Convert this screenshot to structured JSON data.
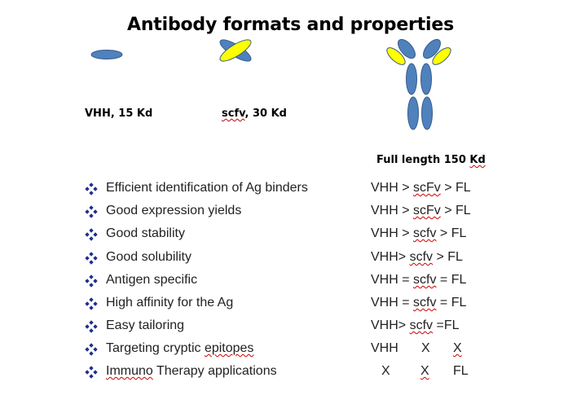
{
  "title": "Antibody formats and properties",
  "formats": {
    "vhh": "VHH, 15 Kd",
    "scfv_name": "scfv",
    "scfv_size": ", 30 Kd",
    "full_length_prefix": "Full length 150 ",
    "full_length_unit": "Kd"
  },
  "colors": {
    "domain_fill": "#4f81bd",
    "domain_stroke": "#385d8a",
    "light_chain_fill": "#ffff00",
    "bullet": "#1f2f8f"
  },
  "rows": [
    {
      "property": "Efficient identification of Ag binders",
      "ranking": [
        "VHH > ",
        "scFv",
        " > FL"
      ]
    },
    {
      "property": "Good expression yields",
      "ranking": [
        "VHH > ",
        "scFv",
        " > FL"
      ]
    },
    {
      "property": "Good stability",
      "ranking": [
        "VHH > ",
        "scfv",
        " > FL"
      ]
    },
    {
      "property": "Good solubility",
      "ranking": [
        "VHH> ",
        "scfv",
        " > FL"
      ]
    },
    {
      "property": "Antigen specific",
      "ranking": [
        "VHH = ",
        "scfv",
        " = FL"
      ]
    },
    {
      "property": "High affinity for the Ag",
      "ranking": [
        "VHH = ",
        "scfv",
        " = FL"
      ]
    },
    {
      "property": "Easy tailoring",
      "ranking": [
        "VHH> ",
        "scfv",
        " =FL"
      ]
    },
    {
      "property": "Targeting cryptic ",
      "property_squig": "epitopes",
      "cells": [
        "VHH",
        "X",
        "X"
      ]
    },
    {
      "property_squig_first": "Immuno",
      "property": " Therapy applications",
      "cells": [
        "X",
        "X",
        "FL"
      ]
    }
  ]
}
